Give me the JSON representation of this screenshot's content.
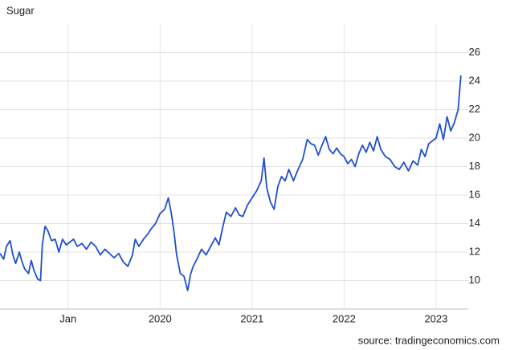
{
  "chart_data": {
    "type": "line",
    "title": "Sugar",
    "source": "source: tradingeconomics.com",
    "x": [
      2018.26,
      2018.3,
      2018.33,
      2018.37,
      2018.4,
      2018.43,
      2018.47,
      2018.5,
      2018.53,
      2018.57,
      2018.6,
      2018.63,
      2018.67,
      2018.7,
      2018.72,
      2018.75,
      2018.78,
      2018.82,
      2018.86,
      2018.9,
      2018.94,
      2018.98,
      2019.02,
      2019.06,
      2019.1,
      2019.15,
      2019.2,
      2019.25,
      2019.3,
      2019.35,
      2019.4,
      2019.45,
      2019.5,
      2019.55,
      2019.6,
      2019.65,
      2019.7,
      2019.73,
      2019.77,
      2019.82,
      2019.87,
      2019.9,
      2019.95,
      2020.0,
      2020.05,
      2020.09,
      2020.12,
      2020.15,
      2020.18,
      2020.22,
      2020.26,
      2020.3,
      2020.33,
      2020.36,
      2020.4,
      2020.45,
      2020.5,
      2020.55,
      2020.6,
      2020.64,
      2020.68,
      2020.72,
      2020.77,
      2020.82,
      2020.86,
      2020.9,
      2020.95,
      2021.0,
      2021.05,
      2021.1,
      2021.13,
      2021.16,
      2021.2,
      2021.24,
      2021.28,
      2021.32,
      2021.36,
      2021.4,
      2021.45,
      2021.5,
      2021.55,
      2021.6,
      2021.64,
      2021.68,
      2021.72,
      2021.76,
      2021.8,
      2021.84,
      2021.88,
      2021.92,
      2021.96,
      2022.0,
      2022.04,
      2022.08,
      2022.12,
      2022.16,
      2022.2,
      2022.24,
      2022.28,
      2022.32,
      2022.36,
      2022.4,
      2022.45,
      2022.5,
      2022.55,
      2022.6,
      2022.65,
      2022.7,
      2022.75,
      2022.8,
      2022.84,
      2022.88,
      2022.92,
      2022.96,
      2023.0,
      2023.04,
      2023.08,
      2023.12,
      2023.16,
      2023.2,
      2023.24,
      2023.27
    ],
    "series": [
      {
        "name": "Sugar",
        "color": "#1f4fd1",
        "values": [
          11.9,
          11.5,
          12.4,
          12.8,
          11.8,
          11.2,
          12.0,
          11.3,
          10.8,
          10.5,
          11.4,
          10.7,
          10.1,
          10.0,
          12.5,
          13.8,
          13.5,
          12.8,
          12.9,
          12.0,
          12.9,
          12.5,
          12.7,
          12.9,
          12.4,
          12.6,
          12.2,
          12.7,
          12.4,
          11.8,
          12.2,
          11.9,
          11.6,
          11.9,
          11.3,
          11.0,
          11.8,
          12.9,
          12.4,
          12.9,
          13.3,
          13.6,
          14.0,
          14.7,
          15.0,
          15.8,
          14.8,
          13.5,
          11.8,
          10.5,
          10.3,
          9.3,
          10.4,
          11.0,
          11.5,
          12.2,
          11.8,
          12.4,
          13.0,
          12.5,
          13.7,
          14.8,
          14.5,
          15.1,
          14.6,
          14.5,
          15.3,
          15.8,
          16.3,
          17.0,
          18.6,
          16.5,
          15.5,
          15.0,
          16.6,
          17.3,
          17.0,
          17.8,
          17.0,
          17.8,
          18.5,
          19.9,
          19.6,
          19.5,
          18.8,
          19.5,
          20.1,
          19.2,
          18.9,
          19.3,
          18.9,
          18.7,
          18.2,
          18.5,
          18.0,
          18.9,
          19.5,
          19.0,
          19.7,
          19.1,
          20.1,
          19.2,
          18.7,
          18.5,
          18.0,
          17.8,
          18.3,
          17.7,
          18.4,
          18.1,
          19.2,
          18.7,
          19.6,
          19.8,
          20.0,
          21.0,
          19.9,
          21.5,
          20.5,
          21.1,
          22.0,
          24.4
        ]
      }
    ],
    "xlim": [
      2018.26,
      2023.35
    ],
    "xticks": [
      {
        "value": 2019,
        "label": "Jan"
      },
      2020,
      2021,
      2022,
      2023
    ],
    "ylim": [
      8,
      28
    ],
    "yticks": [
      10,
      12,
      14,
      16,
      18,
      20,
      22,
      24,
      26
    ],
    "grid": true
  }
}
